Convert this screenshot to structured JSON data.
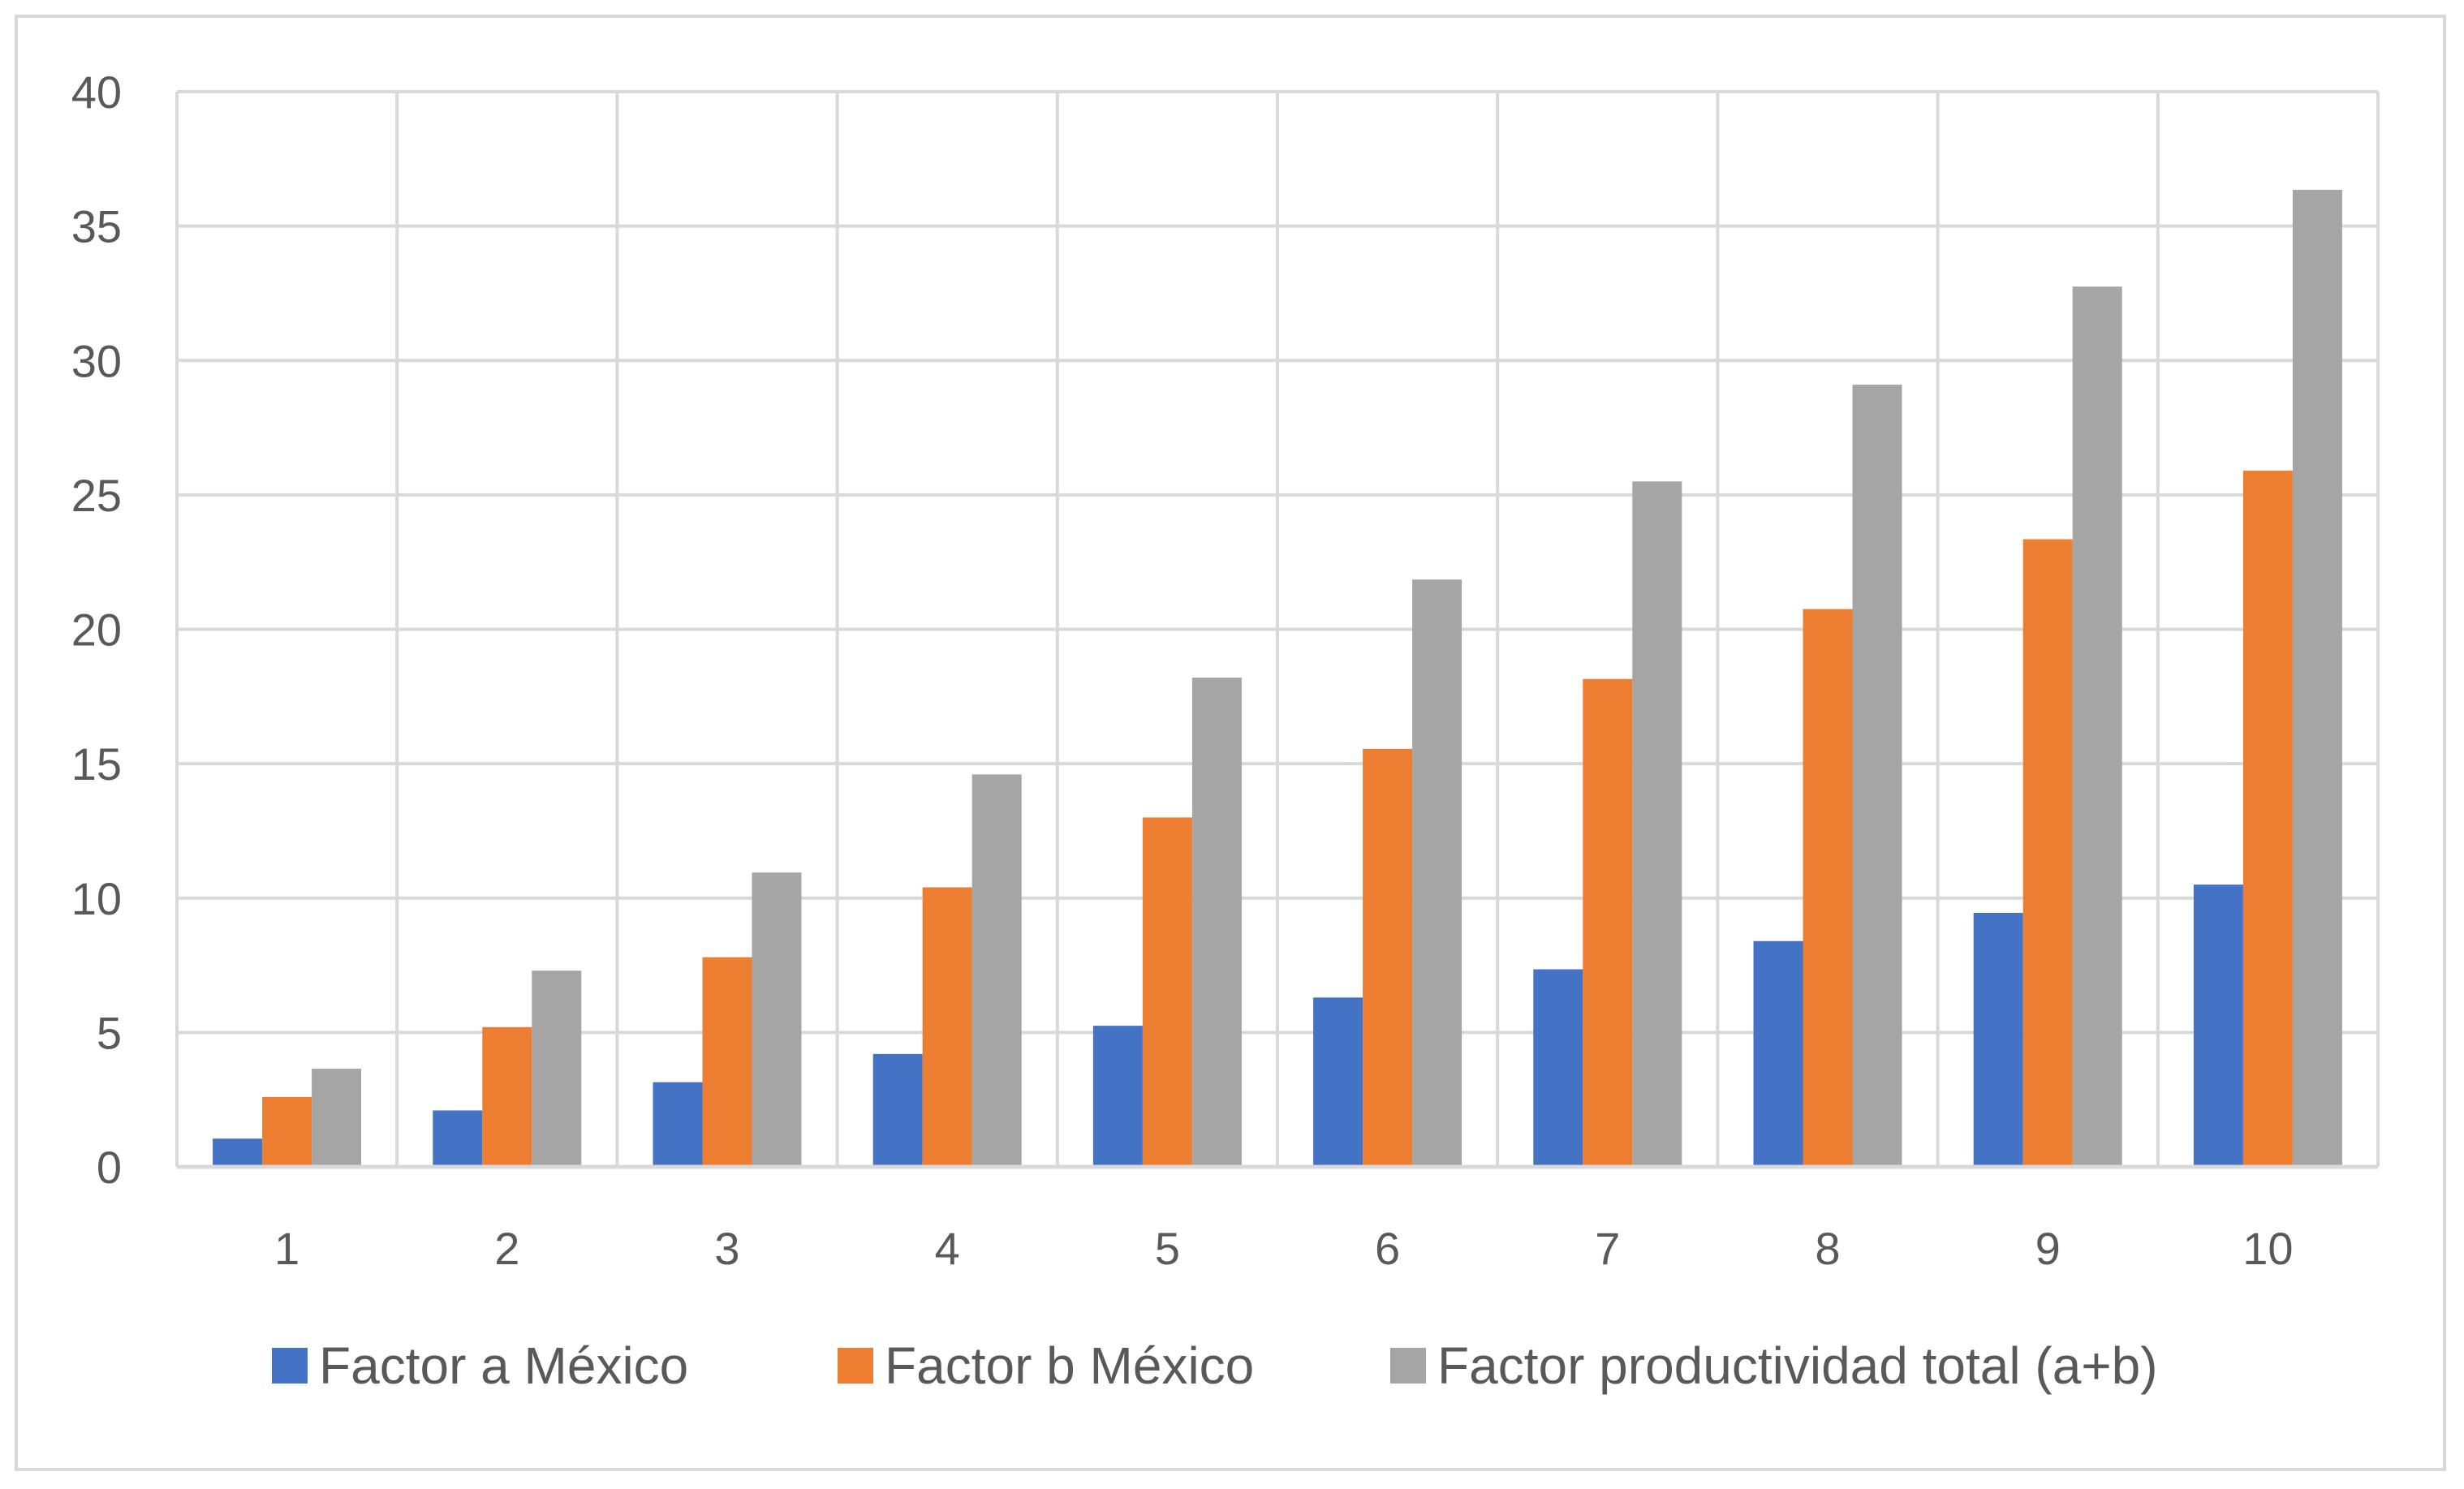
{
  "chart_data": {
    "type": "bar",
    "title": "",
    "xlabel": "",
    "ylabel": "",
    "categories": [
      "1",
      "2",
      "3",
      "4",
      "5",
      "6",
      "7",
      "8",
      "9",
      "10"
    ],
    "ylim": [
      0,
      40
    ],
    "yticks": [
      "0",
      "5",
      "10",
      "15",
      "20",
      "25",
      "30",
      "35",
      "40"
    ],
    "grid": true,
    "legend_position": "bottom",
    "series": [
      {
        "name": "Factor a México",
        "color": "#4472c4",
        "values": [
          1.05,
          2.1,
          3.15,
          4.2,
          5.25,
          6.3,
          7.35,
          8.4,
          9.45,
          10.5
        ]
      },
      {
        "name": "Factor b México",
        "color": "#ed7d31",
        "values": [
          2.6,
          5.2,
          7.8,
          10.4,
          13.0,
          15.55,
          18.15,
          20.75,
          23.35,
          25.9
        ]
      },
      {
        "name": "Factor productividad total (a+b)",
        "color": "#a5a5a5",
        "values": [
          3.65,
          7.3,
          10.95,
          14.6,
          18.2,
          21.85,
          25.5,
          29.1,
          32.75,
          36.35
        ]
      }
    ]
  }
}
